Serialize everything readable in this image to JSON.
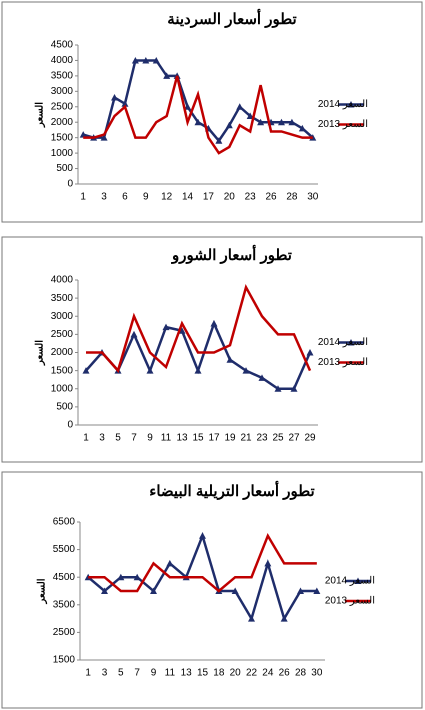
{
  "chart_data": [
    {
      "type": "line",
      "title": "تطور أسعار السردينة",
      "y_label": "السعر",
      "categories": [
        1,
        null,
        3,
        null,
        6,
        null,
        9,
        null,
        12,
        null,
        14,
        null,
        17,
        null,
        20,
        null,
        23,
        null,
        26,
        null,
        28,
        null,
        30
      ],
      "series": [
        {
          "name": "السعر 2014",
          "color": "#1f2d6b",
          "marker": "triangle",
          "values": [
            1600,
            1500,
            1500,
            2800,
            2600,
            4000,
            4000,
            4000,
            3500,
            3500,
            2500,
            2000,
            1800,
            1400,
            1900,
            2500,
            2200,
            2000,
            2000,
            2000,
            2000,
            1800,
            1500
          ]
        },
        {
          "name": "السعر 2013",
          "color": "#c00000",
          "marker": "none",
          "values": [
            1500,
            1500,
            1600,
            2200,
            2500,
            1500,
            1500,
            2000,
            2200,
            3500,
            2000,
            2900,
            1500,
            1000,
            1200,
            1900,
            1700,
            3200,
            1700,
            1700,
            1600,
            1500,
            1500
          ]
        }
      ],
      "ylim": [
        0,
        4500
      ],
      "yticks": [
        0,
        500,
        1000,
        1500,
        2000,
        2500,
        3000,
        3500,
        4000,
        4500
      ],
      "legend": "right"
    },
    {
      "type": "line",
      "title": "تطور أسعار الشورو",
      "y_label": "السعر",
      "categories": [
        1,
        3,
        5,
        7,
        9,
        11,
        13,
        15,
        17,
        19,
        21,
        23,
        25,
        27,
        29
      ],
      "series": [
        {
          "name": "السعر 2014",
          "color": "#1f2d6b",
          "marker": "triangle",
          "values": [
            1500,
            2000,
            1500,
            2500,
            1500,
            2700,
            2600,
            1500,
            2800,
            1800,
            1500,
            1300,
            1000,
            1000,
            2000
          ]
        },
        {
          "name": "السعر 2013",
          "color": "#c00000",
          "marker": "none",
          "values": [
            2000,
            2000,
            1500,
            3000,
            2000,
            1600,
            2800,
            2000,
            2000,
            2200,
            3800,
            3000,
            2500,
            2500,
            1500
          ]
        }
      ],
      "ylim": [
        0,
        4000
      ],
      "yticks": [
        0,
        500,
        1000,
        1500,
        2000,
        2500,
        3000,
        3500,
        4000
      ],
      "legend": "right"
    },
    {
      "type": "line",
      "title": "تطور أسعار التريلية البيضاء",
      "y_label": "السعر",
      "categories": [
        1,
        3,
        5,
        7,
        9,
        11,
        13,
        15,
        18,
        20,
        22,
        24,
        26,
        28,
        30
      ],
      "series": [
        {
          "name": "السعر 2014",
          "color": "#1f2d6b",
          "marker": "triangle",
          "values": [
            4500,
            4000,
            4500,
            4500,
            4000,
            5000,
            4500,
            6000,
            4000,
            4000,
            3000,
            5000,
            3000,
            4000,
            4000
          ]
        },
        {
          "name": "السعر 2013",
          "color": "#c00000",
          "marker": "none",
          "values": [
            4500,
            4500,
            4000,
            4000,
            5000,
            4500,
            4500,
            4500,
            4000,
            4500,
            4500,
            6000,
            5000,
            5000,
            5000
          ]
        }
      ],
      "ylim": [
        1500,
        6500
      ],
      "yticks": [
        1500,
        2500,
        3500,
        4500,
        5500,
        6500
      ],
      "legend": "right"
    }
  ]
}
